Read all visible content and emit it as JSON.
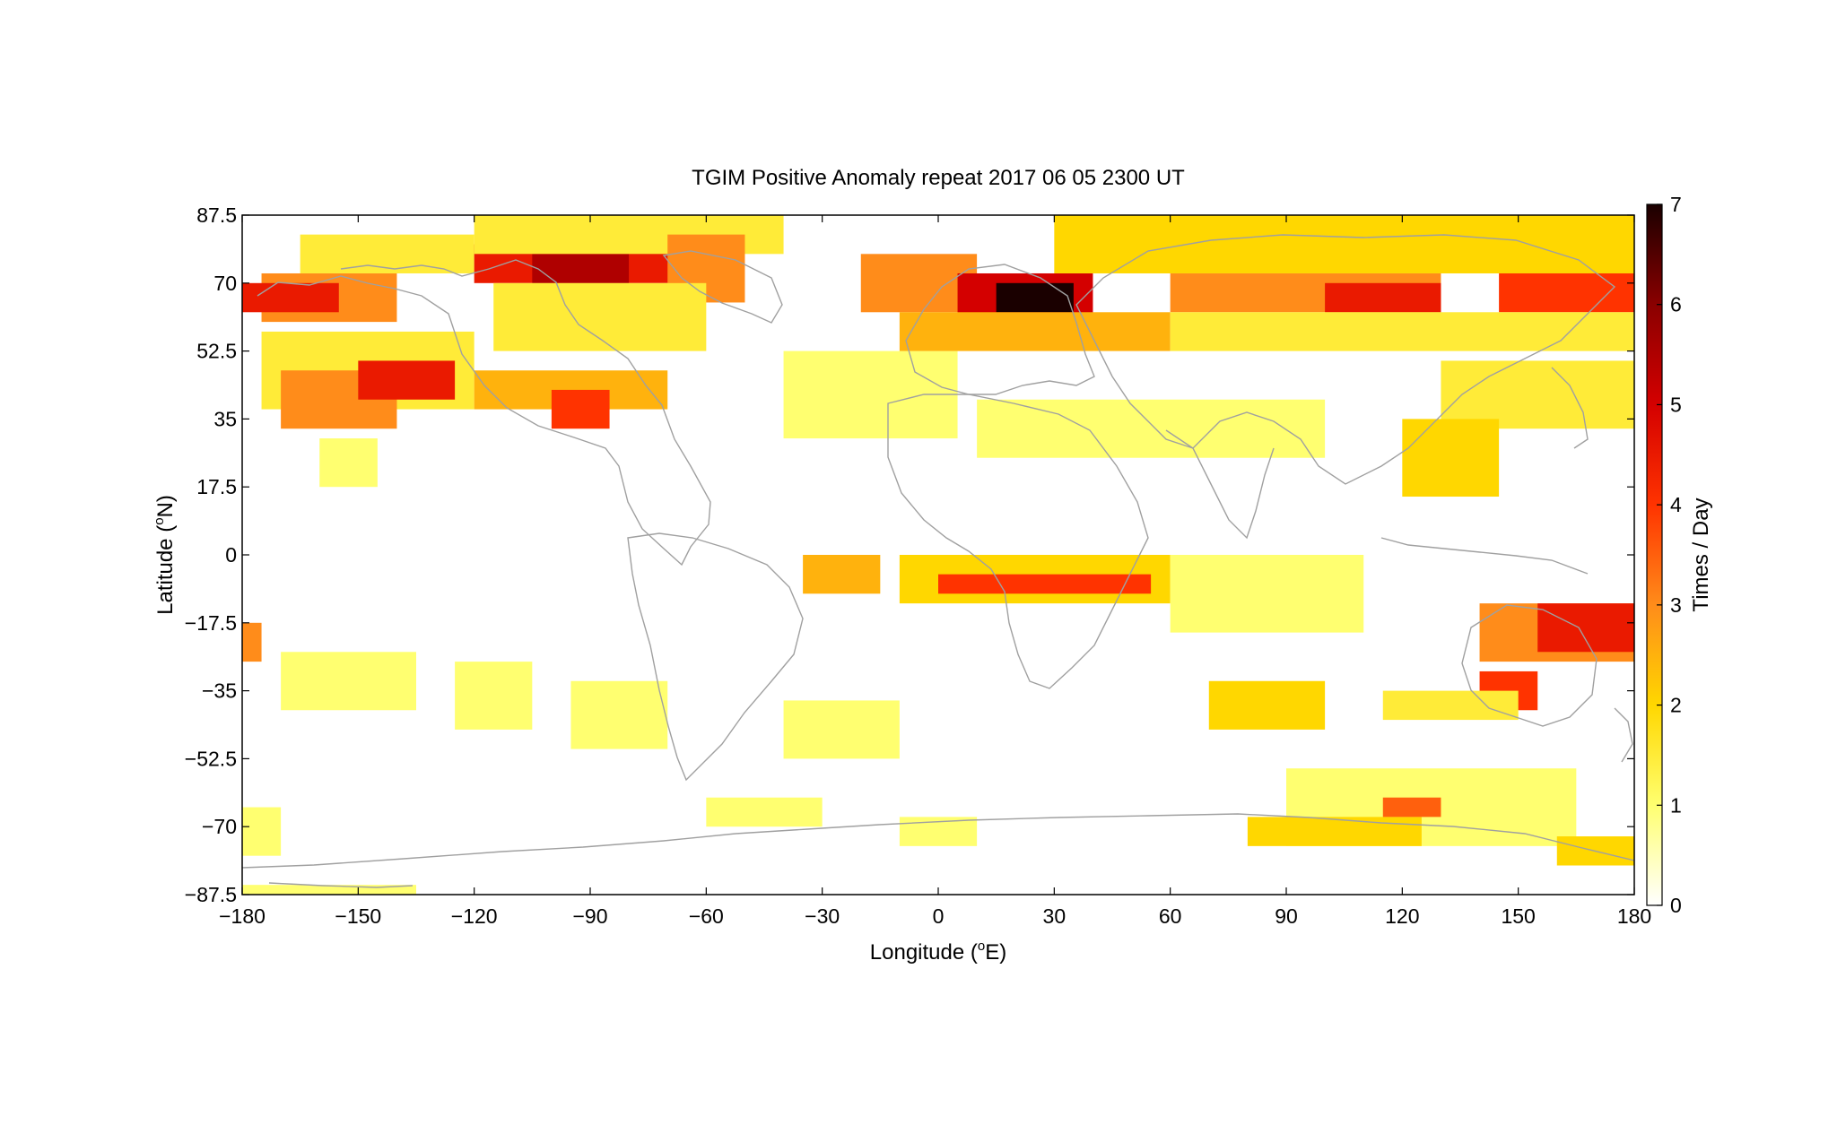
{
  "chart_data": {
    "type": "heatmap",
    "title": "TGIM Positive Anomaly repeat 2017 06 05 2300 UT",
    "xlabel_main": "Longitude (",
    "xlabel_sup": "o",
    "xlabel_tail": "E)",
    "ylabel_main": "Latitude (",
    "ylabel_sup": "o",
    "ylabel_tail": "N)",
    "colorbar_label": "Times / Day",
    "xlim": [
      -180,
      180
    ],
    "ylim": [
      -87.5,
      87.5
    ],
    "xticks": [
      -180,
      -150,
      -120,
      -90,
      -60,
      -30,
      0,
      30,
      60,
      90,
      120,
      150,
      180
    ],
    "xtick_labels": [
      "−180",
      "−150",
      "−120",
      "−90",
      "−60",
      "−30",
      "0",
      "30",
      "60",
      "90",
      "120",
      "150",
      "180"
    ],
    "yticks": [
      87.5,
      70,
      52.5,
      35,
      17.5,
      0,
      -17.5,
      -35,
      -52.5,
      -70,
      -87.5
    ],
    "ytick_labels": [
      "87.5",
      "70",
      "52.5",
      "35",
      "17.5",
      "0",
      "−17.5",
      "−35",
      "−52.5",
      "−70",
      "−87.5"
    ],
    "colorbar_ticks": [
      0,
      1,
      2,
      3,
      4,
      5,
      6,
      7
    ],
    "colorbar_tick_labels": [
      "0",
      "1",
      "2",
      "3",
      "4",
      "5",
      "6",
      "7"
    ],
    "clim": [
      0,
      7
    ],
    "colormap": [
      "#ffffff",
      "#ffff70",
      "#ffd700",
      "#ff8c1a",
      "#ff3300",
      "#d40000",
      "#8a0000",
      "#1a0000"
    ],
    "grid_resolution": {
      "lon_step": 5,
      "lat_step": 2.5
    },
    "coastline_color": "#a0a0a0",
    "regions": [
      {
        "lon": [
          -175,
          -140
        ],
        "lat": [
          60,
          72.5
        ],
        "value": 3
      },
      {
        "lon": [
          -180,
          -155
        ],
        "lat": [
          62.5,
          70
        ],
        "value": 4.5
      },
      {
        "lon": [
          -165,
          -120
        ],
        "lat": [
          72.5,
          82.5
        ],
        "value": 1.5
      },
      {
        "lon": [
          -175,
          -120
        ],
        "lat": [
          37.5,
          57.5
        ],
        "value": 1.5
      },
      {
        "lon": [
          -170,
          -140
        ],
        "lat": [
          32.5,
          47.5
        ],
        "value": 3
      },
      {
        "lon": [
          -150,
          -125
        ],
        "lat": [
          40,
          50
        ],
        "value": 4.5
      },
      {
        "lon": [
          -160,
          -145
        ],
        "lat": [
          17.5,
          30
        ],
        "value": 1
      },
      {
        "lon": [
          -120,
          -65
        ],
        "lat": [
          70,
          80
        ],
        "value": 4.5
      },
      {
        "lon": [
          -105,
          -80
        ],
        "lat": [
          70,
          77.5
        ],
        "value": 5.5
      },
      {
        "lon": [
          -120,
          -40
        ],
        "lat": [
          77.5,
          87.5
        ],
        "value": 1.5
      },
      {
        "lon": [
          -70,
          -50
        ],
        "lat": [
          65,
          82.5
        ],
        "value": 3
      },
      {
        "lon": [
          -115,
          -60
        ],
        "lat": [
          52.5,
          70
        ],
        "value": 1.5
      },
      {
        "lon": [
          -120,
          -70
        ],
        "lat": [
          37.5,
          47.5
        ],
        "value": 2.5
      },
      {
        "lon": [
          -100,
          -85
        ],
        "lat": [
          32.5,
          42.5
        ],
        "value": 4
      },
      {
        "lon": [
          -40,
          5
        ],
        "lat": [
          30,
          52.5
        ],
        "value": 1
      },
      {
        "lon": [
          -20,
          10
        ],
        "lat": [
          62.5,
          77.5
        ],
        "value": 3
      },
      {
        "lon": [
          5,
          40
        ],
        "lat": [
          60,
          72.5
        ],
        "value": 5
      },
      {
        "lon": [
          15,
          35
        ],
        "lat": [
          62.5,
          70
        ],
        "value": 7
      },
      {
        "lon": [
          -10,
          60
        ],
        "lat": [
          52.5,
          62.5
        ],
        "value": 2.5
      },
      {
        "lon": [
          30,
          180
        ],
        "lat": [
          72.5,
          87.5
        ],
        "value": 2
      },
      {
        "lon": [
          60,
          130
        ],
        "lat": [
          62.5,
          72.5
        ],
        "value": 3
      },
      {
        "lon": [
          100,
          130
        ],
        "lat": [
          62.5,
          70
        ],
        "value": 4.5
      },
      {
        "lon": [
          145,
          180
        ],
        "lat": [
          62.5,
          72.5
        ],
        "value": 4
      },
      {
        "lon": [
          60,
          180
        ],
        "lat": [
          52.5,
          62.5
        ],
        "value": 1.5
      },
      {
        "lon": [
          130,
          180
        ],
        "lat": [
          32.5,
          50
        ],
        "value": 1.5
      },
      {
        "lon": [
          120,
          145
        ],
        "lat": [
          15,
          35
        ],
        "value": 2
      },
      {
        "lon": [
          10,
          100
        ],
        "lat": [
          25,
          40
        ],
        "value": 1
      },
      {
        "lon": [
          -35,
          -15
        ],
        "lat": [
          -10,
          0
        ],
        "value": 2.5
      },
      {
        "lon": [
          -10,
          60
        ],
        "lat": [
          -12.5,
          0
        ],
        "value": 2
      },
      {
        "lon": [
          0,
          55
        ],
        "lat": [
          -10,
          -5
        ],
        "value": 4
      },
      {
        "lon": [
          60,
          110
        ],
        "lat": [
          -20,
          0
        ],
        "value": 1
      },
      {
        "lon": [
          -170,
          -135
        ],
        "lat": [
          -40,
          -25
        ],
        "value": 1
      },
      {
        "lon": [
          -180,
          -175
        ],
        "lat": [
          -27.5,
          -17.5
        ],
        "value": 3
      },
      {
        "lon": [
          -125,
          -105
        ],
        "lat": [
          -45,
          -27.5
        ],
        "value": 1
      },
      {
        "lon": [
          -95,
          -70
        ],
        "lat": [
          -50,
          -32.5
        ],
        "value": 1
      },
      {
        "lon": [
          -40,
          -10
        ],
        "lat": [
          -52.5,
          -37.5
        ],
        "value": 1
      },
      {
        "lon": [
          70,
          100
        ],
        "lat": [
          -45,
          -32.5
        ],
        "value": 2
      },
      {
        "lon": [
          140,
          180
        ],
        "lat": [
          -27.5,
          -12.5
        ],
        "value": 3
      },
      {
        "lon": [
          155,
          180
        ],
        "lat": [
          -25,
          -12.5
        ],
        "value": 4.5
      },
      {
        "lon": [
          140,
          155
        ],
        "lat": [
          -40,
          -30
        ],
        "value": 4
      },
      {
        "lon": [
          115,
          150
        ],
        "lat": [
          -42.5,
          -35
        ],
        "value": 1.5
      },
      {
        "lon": [
          90,
          165
        ],
        "lat": [
          -75,
          -55
        ],
        "value": 1
      },
      {
        "lon": [
          80,
          125
        ],
        "lat": [
          -75,
          -67.5
        ],
        "value": 2
      },
      {
        "lon": [
          115,
          130
        ],
        "lat": [
          -67.5,
          -62.5
        ],
        "value": 3.5
      },
      {
        "lon": [
          160,
          180
        ],
        "lat": [
          -80,
          -72.5
        ],
        "value": 2
      },
      {
        "lon": [
          -180,
          -170
        ],
        "lat": [
          -77.5,
          -65
        ],
        "value": 1
      },
      {
        "lon": [
          -180,
          -135
        ],
        "lat": [
          -87.5,
          -85
        ],
        "value": 1
      },
      {
        "lon": [
          -60,
          -30
        ],
        "lat": [
          -70,
          -62.5
        ],
        "value": 1
      },
      {
        "lon": [
          -10,
          10
        ],
        "lat": [
          -75,
          -67.5
        ],
        "value": 1
      }
    ]
  }
}
